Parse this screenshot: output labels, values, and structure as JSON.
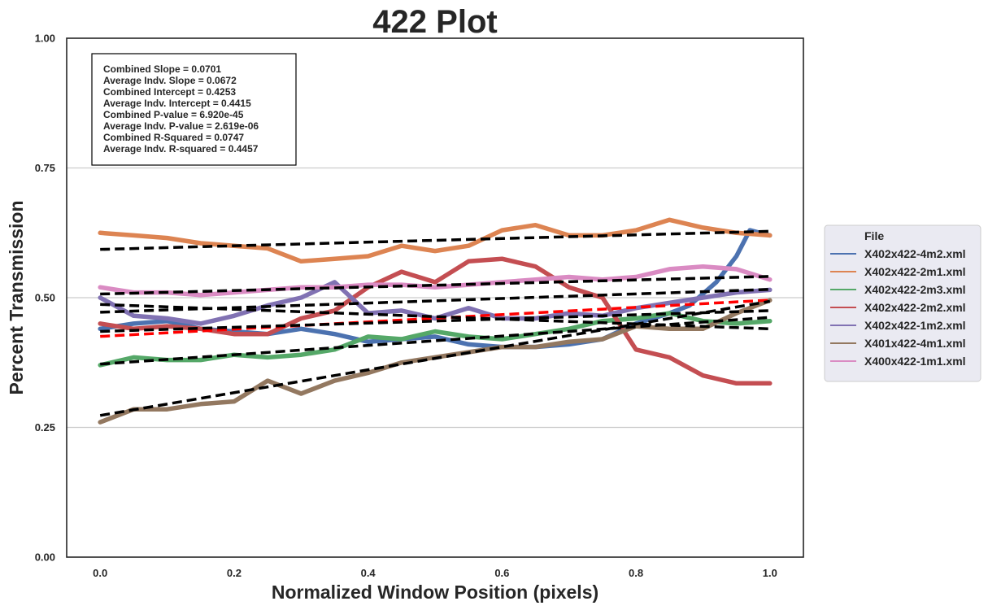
{
  "chart_data": {
    "type": "line",
    "title": "422 Plot",
    "xlabel": "Normalized Window Position (pixels)",
    "ylabel": "Percent Transmission",
    "xlim": [
      -0.05,
      1.05
    ],
    "ylim": [
      0.0,
      1.0
    ],
    "x_ticks": [
      0.0,
      0.2,
      0.4,
      0.6,
      0.8,
      1.0
    ],
    "x_tick_labels": [
      "0.0",
      "0.2",
      "0.4",
      "0.6",
      "0.8",
      "1.0"
    ],
    "y_ticks": [
      0.0,
      0.25,
      0.5,
      0.75,
      1.0
    ],
    "y_tick_labels": [
      "0.00",
      "0.25",
      "0.50",
      "0.75",
      "1.00"
    ],
    "grid": "horizontal",
    "legend": {
      "title": "File",
      "placement": "right-outside"
    },
    "stats": [
      "Combined Slope = 0.0701",
      "Average Indv. Slope = 0.0672",
      "Combined Intercept = 0.4253",
      "Average Indv. Intercept = 0.4415",
      "Combined P-value = 6.920e-45",
      "Average Indv. P-value = 2.619e-06",
      "Combined R-Squared = 0.0747",
      "Average Indv. R-squared = 0.4457"
    ],
    "series": [
      {
        "name": "X402x422-4m2.xml",
        "color": "#4c72b0",
        "x": [
          0.0,
          0.05,
          0.1,
          0.15,
          0.2,
          0.25,
          0.3,
          0.35,
          0.4,
          0.45,
          0.5,
          0.55,
          0.6,
          0.65,
          0.7,
          0.75,
          0.8,
          0.85,
          0.88,
          0.92,
          0.95,
          0.97,
          1.0
        ],
        "y": [
          0.44,
          0.45,
          0.455,
          0.44,
          0.435,
          0.43,
          0.44,
          0.43,
          0.415,
          0.42,
          0.425,
          0.41,
          0.405,
          0.405,
          0.41,
          0.42,
          0.45,
          0.47,
          0.485,
          0.53,
          0.58,
          0.63,
          0.62
        ],
        "fit": [
          0.435,
          0.475
        ]
      },
      {
        "name": "X402x422-2m1.xml",
        "color": "#dd8452",
        "x": [
          0.0,
          0.05,
          0.1,
          0.15,
          0.2,
          0.25,
          0.3,
          0.35,
          0.4,
          0.45,
          0.5,
          0.55,
          0.6,
          0.65,
          0.7,
          0.75,
          0.8,
          0.85,
          0.9,
          0.95,
          1.0
        ],
        "y": [
          0.625,
          0.62,
          0.615,
          0.605,
          0.6,
          0.595,
          0.57,
          0.575,
          0.58,
          0.6,
          0.59,
          0.6,
          0.63,
          0.64,
          0.62,
          0.62,
          0.63,
          0.65,
          0.635,
          0.625,
          0.62
        ],
        "fit": [
          0.593,
          0.628
        ]
      },
      {
        "name": "X402x422-2m3.xml",
        "color": "#55a868",
        "x": [
          0.0,
          0.05,
          0.1,
          0.15,
          0.2,
          0.25,
          0.3,
          0.35,
          0.4,
          0.45,
          0.5,
          0.55,
          0.6,
          0.65,
          0.7,
          0.75,
          0.8,
          0.85,
          0.9,
          0.95,
          1.0
        ],
        "y": [
          0.37,
          0.385,
          0.38,
          0.38,
          0.39,
          0.385,
          0.39,
          0.4,
          0.425,
          0.42,
          0.435,
          0.425,
          0.42,
          0.43,
          0.44,
          0.455,
          0.46,
          0.47,
          0.455,
          0.45,
          0.455
        ],
        "fit": [
          0.372,
          0.462
        ]
      },
      {
        "name": "X402x422-2m2.xml",
        "color": "#c44e52",
        "x": [
          0.0,
          0.05,
          0.1,
          0.15,
          0.2,
          0.25,
          0.3,
          0.35,
          0.4,
          0.45,
          0.5,
          0.55,
          0.6,
          0.65,
          0.7,
          0.75,
          0.8,
          0.85,
          0.9,
          0.95,
          1.0
        ],
        "y": [
          0.45,
          0.44,
          0.445,
          0.44,
          0.43,
          0.43,
          0.46,
          0.475,
          0.52,
          0.55,
          0.53,
          0.57,
          0.575,
          0.56,
          0.52,
          0.5,
          0.4,
          0.385,
          0.35,
          0.335,
          0.335
        ],
        "fit": [
          0.487,
          0.44
        ]
      },
      {
        "name": "X402x422-1m2.xml",
        "color": "#8172b3",
        "x": [
          0.0,
          0.05,
          0.1,
          0.15,
          0.2,
          0.25,
          0.3,
          0.35,
          0.4,
          0.45,
          0.5,
          0.55,
          0.6,
          0.65,
          0.7,
          0.75,
          0.8,
          0.85,
          0.9,
          0.95,
          1.0
        ],
        "y": [
          0.5,
          0.465,
          0.46,
          0.45,
          0.465,
          0.485,
          0.5,
          0.53,
          0.47,
          0.475,
          0.46,
          0.48,
          0.46,
          0.46,
          0.47,
          0.465,
          0.48,
          0.49,
          0.5,
          0.51,
          0.515
        ],
        "fit": [
          0.472,
          0.516
        ]
      },
      {
        "name": "X401x422-4m1.xml",
        "color": "#937860",
        "x": [
          0.0,
          0.05,
          0.1,
          0.15,
          0.2,
          0.25,
          0.3,
          0.35,
          0.4,
          0.45,
          0.5,
          0.55,
          0.6,
          0.65,
          0.7,
          0.75,
          0.8,
          0.85,
          0.9,
          0.95,
          1.0
        ],
        "y": [
          0.26,
          0.285,
          0.285,
          0.295,
          0.3,
          0.34,
          0.315,
          0.34,
          0.355,
          0.375,
          0.385,
          0.395,
          0.405,
          0.405,
          0.415,
          0.42,
          0.445,
          0.44,
          0.44,
          0.47,
          0.495
        ],
        "fit": [
          0.273,
          0.493
        ]
      },
      {
        "name": "X400x422-1m1.xml",
        "color": "#da8bc3",
        "x": [
          0.0,
          0.05,
          0.1,
          0.15,
          0.2,
          0.25,
          0.3,
          0.35,
          0.4,
          0.45,
          0.5,
          0.55,
          0.6,
          0.65,
          0.7,
          0.75,
          0.8,
          0.85,
          0.9,
          0.95,
          1.0
        ],
        "y": [
          0.52,
          0.51,
          0.51,
          0.505,
          0.51,
          0.515,
          0.52,
          0.52,
          0.525,
          0.525,
          0.52,
          0.525,
          0.53,
          0.535,
          0.54,
          0.535,
          0.54,
          0.555,
          0.56,
          0.555,
          0.535
        ],
        "fit": [
          0.507,
          0.541
        ]
      }
    ],
    "combined_fit": {
      "color": "#ff0000",
      "y": [
        0.4253,
        0.4954
      ]
    }
  }
}
